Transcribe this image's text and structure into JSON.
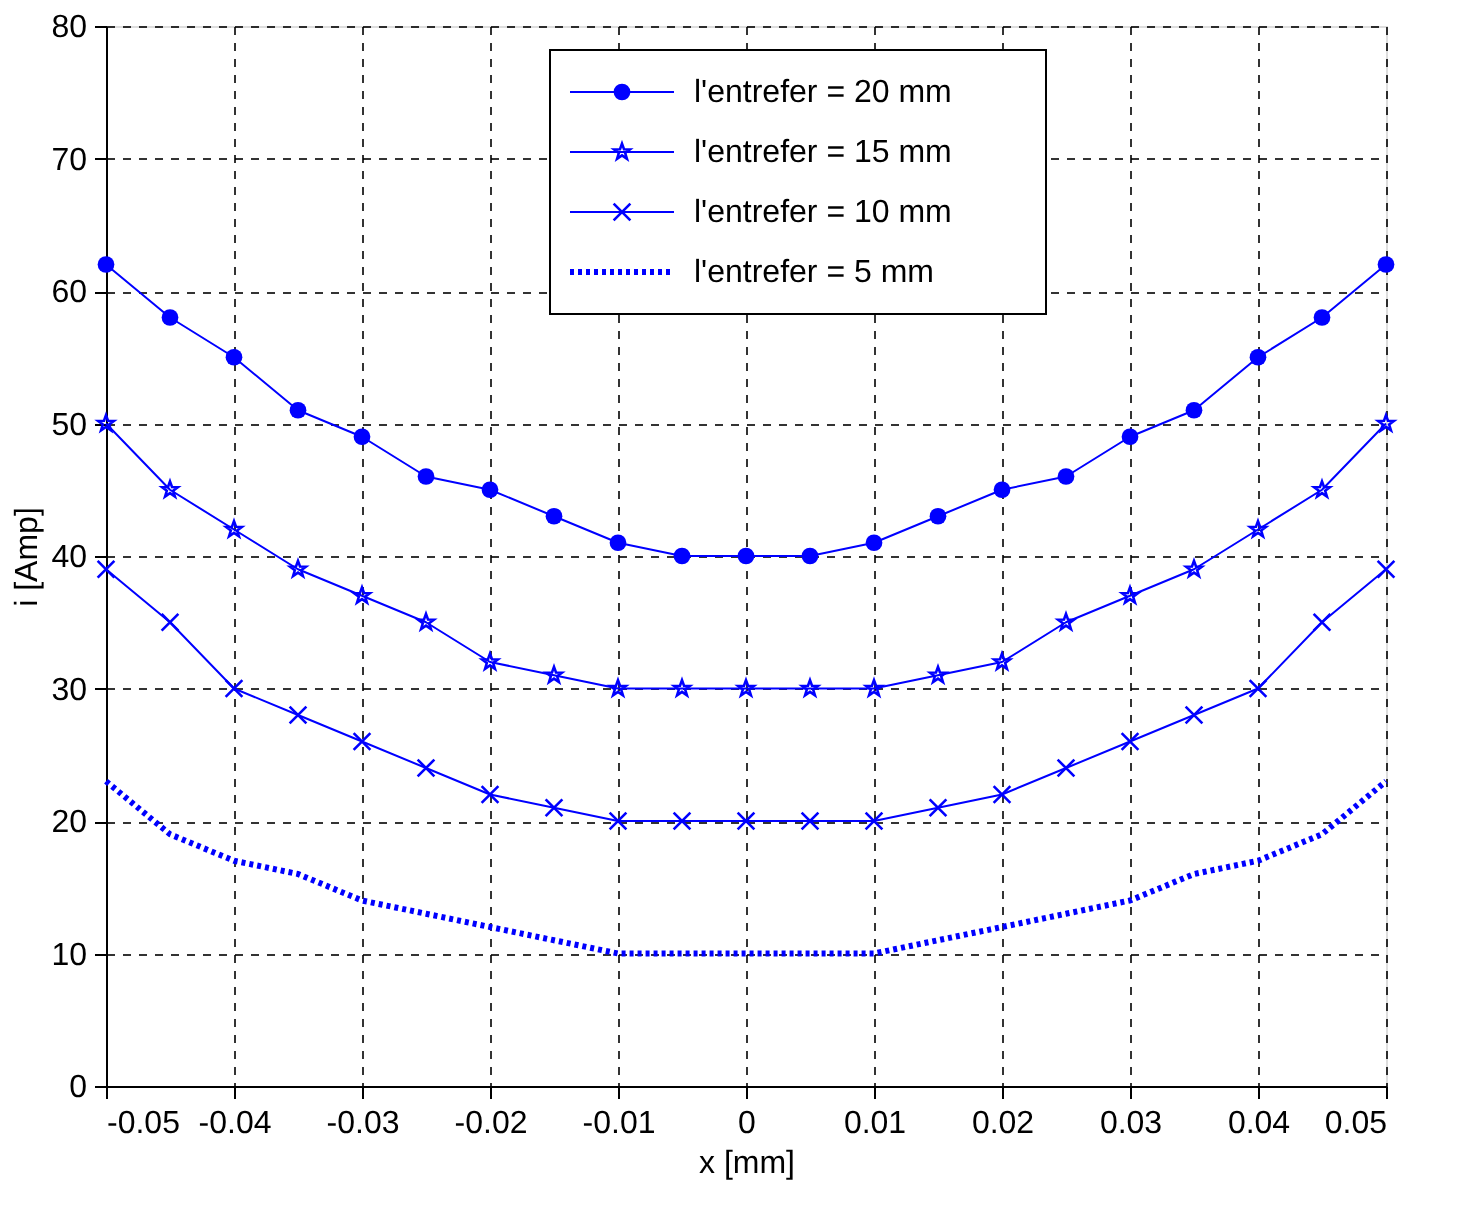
{
  "chart_data": {
    "type": "line",
    "xlabel": "x [mm]",
    "ylabel": "i [Amp]",
    "x": [
      -0.05,
      -0.045,
      -0.04,
      -0.035,
      -0.03,
      -0.025,
      -0.02,
      -0.015,
      -0.01,
      -0.005,
      0,
      0.005,
      0.01,
      0.015,
      0.02,
      0.025,
      0.03,
      0.035,
      0.04,
      0.045,
      0.05
    ],
    "xlim": [
      -0.05,
      0.05
    ],
    "xticks": [
      -0.05,
      -0.04,
      -0.03,
      -0.02,
      -0.01,
      0,
      0.01,
      0.02,
      0.03,
      0.04,
      0.05
    ],
    "ylim": [
      0,
      80
    ],
    "yticks": [
      0,
      10,
      20,
      30,
      40,
      50,
      60,
      70,
      80
    ],
    "grid": true,
    "legend": "top right",
    "series": [
      {
        "name": "l'entrefer = 20 mm",
        "color": "#0000ff",
        "marker": "circle",
        "line_style": "solid",
        "values": [
          62,
          58,
          55,
          51,
          49,
          46,
          45,
          43,
          41,
          40,
          40,
          40,
          41,
          43,
          45,
          46,
          49,
          51,
          55,
          58,
          62
        ]
      },
      {
        "name": "l'entrefer = 15 mm",
        "color": "#0000ff",
        "marker": "star",
        "line_style": "solid",
        "values": [
          50,
          45,
          42,
          39,
          37,
          35,
          32,
          31,
          30,
          30,
          30,
          30,
          30,
          31,
          32,
          35,
          37,
          39,
          42,
          45,
          50
        ]
      },
      {
        "name": "l'entrefer = 10 mm",
        "color": "#0000ff",
        "marker": "cross",
        "line_style": "solid",
        "values": [
          39,
          35,
          30,
          28,
          26,
          24,
          22,
          21,
          20,
          20,
          20,
          20,
          20,
          21,
          22,
          24,
          26,
          28,
          30,
          35,
          39
        ]
      },
      {
        "name": "l'entrefer = 5 mm",
        "color": "#0000ff",
        "marker": "none",
        "line_style": "dotted",
        "values": [
          23,
          19,
          17,
          16,
          14,
          13,
          12,
          11,
          10,
          10,
          10,
          10,
          10,
          11,
          12,
          13,
          14,
          16,
          17,
          19,
          23
        ]
      }
    ]
  }
}
